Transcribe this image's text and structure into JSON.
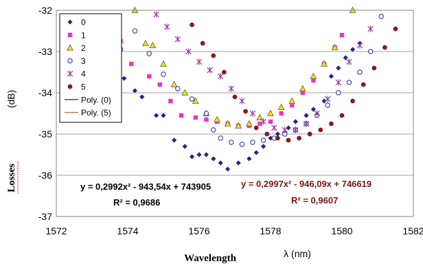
{
  "chart_data": {
    "type": "scatter",
    "xlim": [
      1572,
      1582
    ],
    "ylim": [
      -37,
      -32
    ],
    "x_ticks": [
      "1572",
      "1574",
      "1576",
      "1578",
      "1580",
      "1582"
    ],
    "y_ticks": [
      "-32",
      "-33",
      "-34",
      "-35",
      "-36",
      "-37"
    ],
    "ylabel_main": "Losses",
    "ylabel_unit": "(dB)",
    "xlabel_main": "Wavelength",
    "xlabel_unit": "λ (nm)",
    "grid": true,
    "legend_position": "top-left",
    "series": [
      {
        "name": "0",
        "marker": "diamond",
        "color": "#1f2a7a",
        "points": [
          [
            1573.6,
            -33.45
          ],
          [
            1573.9,
            -33.65
          ],
          [
            1574.2,
            -33.95
          ],
          [
            1574.4,
            -34.1
          ],
          [
            1574.8,
            -34.55
          ],
          [
            1575.0,
            -34.55
          ],
          [
            1575.3,
            -35.15
          ],
          [
            1575.6,
            -35.3
          ],
          [
            1575.8,
            -35.55
          ],
          [
            1576.0,
            -35.5
          ],
          [
            1576.2,
            -35.5
          ],
          [
            1576.4,
            -35.6
          ],
          [
            1576.6,
            -35.7
          ],
          [
            1576.8,
            -35.85
          ],
          [
            1577.1,
            -35.7
          ],
          [
            1577.4,
            -35.6
          ],
          [
            1577.6,
            -35.45
          ],
          [
            1577.8,
            -35.3
          ],
          [
            1578.0,
            -35.1
          ],
          [
            1578.2,
            -35.0
          ],
          [
            1578.5,
            -34.85
          ],
          [
            1578.7,
            -34.7
          ],
          [
            1579.0,
            -34.55
          ],
          [
            1579.2,
            -34.4
          ],
          [
            1579.5,
            -34.2
          ],
          [
            1579.7,
            -33.6
          ],
          [
            1579.9,
            -33.4
          ],
          [
            1580.1,
            -33.15
          ],
          [
            1580.3,
            -32.95
          ],
          [
            1580.5,
            -32.8
          ]
        ]
      },
      {
        "name": "1",
        "marker": "square",
        "color": "#ee33cc",
        "points": [
          [
            1573.4,
            -32.4
          ],
          [
            1573.8,
            -32.75
          ],
          [
            1574.1,
            -33.3
          ],
          [
            1574.6,
            -33.6
          ],
          [
            1574.9,
            -33.8
          ],
          [
            1575.2,
            -34.2
          ],
          [
            1575.5,
            -34.55
          ],
          [
            1575.9,
            -34.6
          ],
          [
            1576.2,
            -34.65
          ],
          [
            1576.5,
            -34.7
          ],
          [
            1576.8,
            -34.75
          ],
          [
            1577.1,
            -34.8
          ],
          [
            1577.4,
            -34.8
          ],
          [
            1577.7,
            -34.75
          ],
          [
            1578.0,
            -34.7
          ],
          [
            1578.3,
            -34.5
          ],
          [
            1578.6,
            -34.3
          ],
          [
            1578.9,
            -34.0
          ],
          [
            1579.2,
            -33.7
          ],
          [
            1579.5,
            -33.3
          ],
          [
            1579.8,
            -32.9
          ],
          [
            1580.0,
            -32.6
          ]
        ]
      },
      {
        "name": "2",
        "marker": "triangle",
        "color": "#f2e200",
        "points": [
          [
            1574.2,
            -32.0
          ],
          [
            1574.5,
            -32.8
          ],
          [
            1574.7,
            -32.85
          ],
          [
            1575.0,
            -33.3
          ],
          [
            1575.3,
            -33.8
          ],
          [
            1575.6,
            -34.0
          ],
          [
            1575.9,
            -34.2
          ],
          [
            1576.2,
            -34.5
          ],
          [
            1576.5,
            -34.65
          ],
          [
            1576.8,
            -34.75
          ],
          [
            1577.1,
            -34.8
          ],
          [
            1577.4,
            -34.75
          ],
          [
            1577.7,
            -34.6
          ],
          [
            1578.0,
            -34.5
          ],
          [
            1578.3,
            -34.35
          ],
          [
            1578.6,
            -34.2
          ],
          [
            1578.9,
            -33.9
          ],
          [
            1579.2,
            -33.6
          ],
          [
            1579.5,
            -33.3
          ],
          [
            1579.8,
            -32.9
          ],
          [
            1580.3,
            -32.0
          ]
        ]
      },
      {
        "name": "3",
        "marker": "circle-open",
        "color": "#1f2a9a",
        "points": [
          [
            1573.8,
            -32.95
          ],
          [
            1574.2,
            -32.5
          ],
          [
            1574.6,
            -33.05
          ],
          [
            1575.0,
            -33.55
          ],
          [
            1575.4,
            -33.9
          ],
          [
            1575.8,
            -34.15
          ],
          [
            1576.2,
            -34.5
          ],
          [
            1576.4,
            -34.9
          ],
          [
            1576.6,
            -35.1
          ],
          [
            1576.9,
            -35.2
          ],
          [
            1577.2,
            -35.25
          ],
          [
            1577.5,
            -35.2
          ],
          [
            1577.8,
            -35.15
          ],
          [
            1578.1,
            -35.1
          ],
          [
            1578.4,
            -35.0
          ],
          [
            1578.7,
            -34.9
          ],
          [
            1579.0,
            -34.75
          ],
          [
            1579.3,
            -34.55
          ],
          [
            1579.6,
            -34.3
          ],
          [
            1579.9,
            -34.0
          ],
          [
            1580.2,
            -33.75
          ],
          [
            1580.5,
            -33.5
          ],
          [
            1580.8,
            -33.0
          ],
          [
            1581.1,
            -32.15
          ]
        ]
      },
      {
        "name": "4",
        "marker": "star",
        "color": "#993399",
        "points": [
          [
            1574.8,
            -32.1
          ],
          [
            1575.1,
            -32.4
          ],
          [
            1575.4,
            -32.7
          ],
          [
            1575.7,
            -33.0
          ],
          [
            1576.0,
            -33.25
          ],
          [
            1576.3,
            -33.45
          ],
          [
            1576.6,
            -33.6
          ],
          [
            1576.9,
            -33.9
          ],
          [
            1577.2,
            -34.2
          ],
          [
            1577.5,
            -34.5
          ],
          [
            1577.8,
            -34.7
          ],
          [
            1578.1,
            -34.85
          ],
          [
            1578.4,
            -34.9
          ],
          [
            1578.7,
            -34.9
          ],
          [
            1579.0,
            -34.75
          ],
          [
            1579.3,
            -34.5
          ],
          [
            1579.6,
            -34.15
          ],
          [
            1579.9,
            -33.75
          ],
          [
            1580.2,
            -33.25
          ],
          [
            1580.5,
            -32.85
          ],
          [
            1580.8,
            -32.45
          ]
        ]
      },
      {
        "name": "5",
        "marker": "circle-filled",
        "color": "#8b1a1a",
        "points": [
          [
            1575.8,
            -32.35
          ],
          [
            1576.1,
            -32.8
          ],
          [
            1576.4,
            -33.1
          ],
          [
            1576.7,
            -33.5
          ],
          [
            1577.0,
            -34.1
          ],
          [
            1577.3,
            -34.45
          ],
          [
            1577.6,
            -34.85
          ],
          [
            1577.9,
            -35.0
          ],
          [
            1578.2,
            -35.1
          ],
          [
            1578.5,
            -35.15
          ],
          [
            1578.8,
            -35.1
          ],
          [
            1579.1,
            -35.0
          ],
          [
            1579.4,
            -34.9
          ],
          [
            1579.7,
            -34.75
          ],
          [
            1580.0,
            -34.55
          ],
          [
            1580.3,
            -34.2
          ],
          [
            1580.6,
            -33.8
          ],
          [
            1580.9,
            -33.4
          ],
          [
            1581.2,
            -32.9
          ],
          [
            1581.5,
            -32.45
          ]
        ]
      },
      {
        "name": "Poly. (0)",
        "marker": "line",
        "color": "#2d3a8c",
        "equation": "y = 0,2992x² - 943,54x + 743905",
        "r2": "R² = 0,9686"
      },
      {
        "name": "Poly. (5)",
        "marker": "line",
        "color": "#b4745a",
        "equation": "y = 0,2997x² - 946,09x + 746619",
        "r2": "R² = 0,9607"
      }
    ]
  }
}
